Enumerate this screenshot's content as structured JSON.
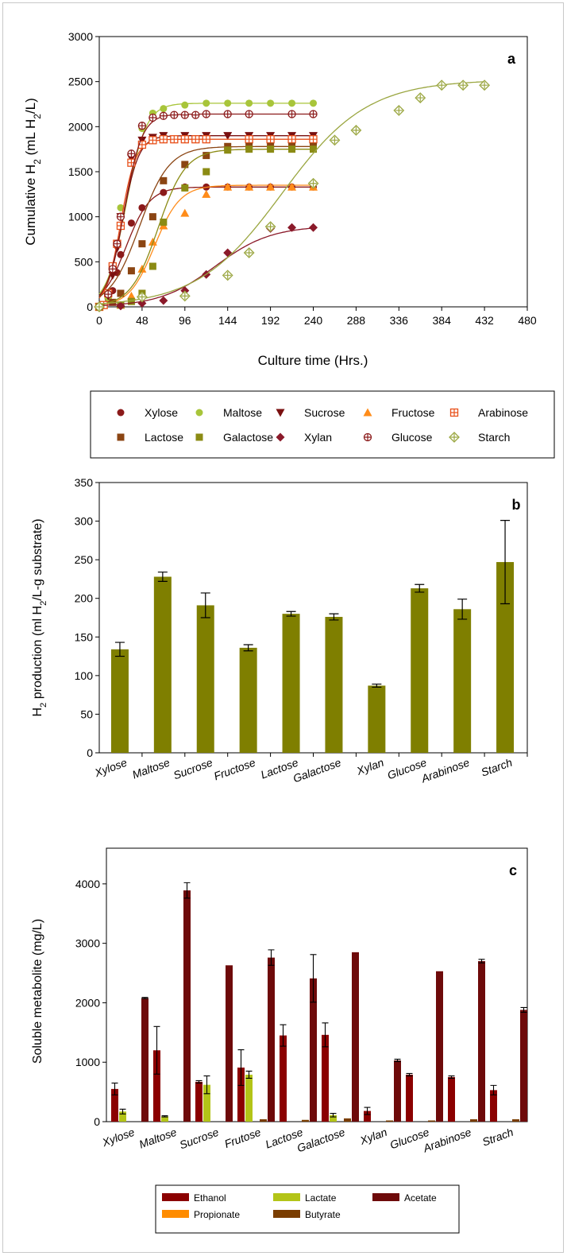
{
  "chart_data": [
    {
      "panel": "a",
      "type": "scatter",
      "xlabel": "Culture time (Hrs.)",
      "ylabel_main": "Cumulative H",
      "ylabel_sub": "2",
      "ylabel_unit": " (mL H",
      "ylabel_unit_sub": "2",
      "ylabel_end": "/L)",
      "xlim": [
        0,
        480
      ],
      "ylim": [
        0,
        3000
      ],
      "xticks": [
        "0",
        "48",
        "96",
        "144",
        "192",
        "240",
        "288",
        "336",
        "384",
        "432",
        "480"
      ],
      "yticks": [
        "0",
        "500",
        "1000",
        "1500",
        "2000",
        "2500",
        "3000"
      ],
      "legend_position": "below",
      "series": [
        {
          "name": "Xylose",
          "marker": "circle",
          "color": "#8b1a1a",
          "fit": {
            "A": 1330,
            "k": 0.075,
            "t0": 30
          },
          "points": [
            [
              0,
              0
            ],
            [
              5,
              20
            ],
            [
              10,
              90
            ],
            [
              15,
              180
            ],
            [
              20,
              380
            ],
            [
              24,
              580
            ],
            [
              36,
              930
            ],
            [
              48,
              1100
            ],
            [
              72,
              1270
            ],
            [
              96,
              1330
            ],
            [
              120,
              1330
            ],
            [
              144,
              1330
            ],
            [
              168,
              1330
            ],
            [
              192,
              1330
            ],
            [
              216,
              1330
            ],
            [
              240,
              1330
            ]
          ]
        },
        {
          "name": "Maltose",
          "marker": "circle",
          "color": "#a8c53a",
          "fit": {
            "A": 2260,
            "k": 0.09,
            "t0": 30
          },
          "points": [
            [
              0,
              0
            ],
            [
              10,
              100
            ],
            [
              15,
              400
            ],
            [
              20,
              700
            ],
            [
              24,
              1100
            ],
            [
              36,
              1600
            ],
            [
              48,
              1980
            ],
            [
              60,
              2150
            ],
            [
              72,
              2200
            ],
            [
              96,
              2240
            ],
            [
              120,
              2260
            ],
            [
              144,
              2260
            ],
            [
              168,
              2260
            ],
            [
              192,
              2260
            ],
            [
              216,
              2260
            ],
            [
              240,
              2260
            ]
          ]
        },
        {
          "name": "Sucrose",
          "marker": "triangle-down",
          "color": "#7a1010",
          "fit": {
            "A": 1900,
            "k": 0.11,
            "t0": 26
          },
          "points": [
            [
              0,
              0
            ],
            [
              10,
              120
            ],
            [
              15,
              350
            ],
            [
              20,
              650
            ],
            [
              24,
              1000
            ],
            [
              36,
              1650
            ],
            [
              48,
              1850
            ],
            [
              60,
              1880
            ],
            [
              72,
              1900
            ],
            [
              96,
              1900
            ],
            [
              120,
              1900
            ],
            [
              144,
              1900
            ],
            [
              168,
              1900
            ],
            [
              192,
              1900
            ],
            [
              216,
              1900
            ],
            [
              240,
              1900
            ]
          ]
        },
        {
          "name": "Fructose",
          "marker": "triangle-up",
          "color": "#ff8c1a",
          "fit": {
            "A": 1350,
            "k": 0.07,
            "t0": 62
          },
          "points": [
            [
              0,
              0
            ],
            [
              24,
              20
            ],
            [
              36,
              120
            ],
            [
              48,
              420
            ],
            [
              60,
              720
            ],
            [
              72,
              900
            ],
            [
              96,
              1040
            ],
            [
              120,
              1250
            ],
            [
              144,
              1330
            ],
            [
              168,
              1330
            ],
            [
              192,
              1330
            ],
            [
              216,
              1330
            ],
            [
              240,
              1330
            ]
          ]
        },
        {
          "name": "Arabinose",
          "marker": "square-plus",
          "color": "#e8501a",
          "fit": {
            "A": 1860,
            "k": 0.12,
            "t0": 24
          },
          "points": [
            [
              0,
              0
            ],
            [
              5,
              20
            ],
            [
              10,
              150
            ],
            [
              15,
              450
            ],
            [
              20,
              700
            ],
            [
              24,
              900
            ],
            [
              36,
              1600
            ],
            [
              48,
              1800
            ],
            [
              60,
              1850
            ],
            [
              72,
              1860
            ],
            [
              84,
              1860
            ],
            [
              96,
              1860
            ],
            [
              108,
              1860
            ],
            [
              120,
              1860
            ],
            [
              168,
              1860
            ],
            [
              192,
              1860
            ],
            [
              216,
              1860
            ],
            [
              240,
              1860
            ]
          ]
        },
        {
          "name": "Lactose",
          "marker": "square",
          "color": "#8b4513",
          "fit": {
            "A": 1780,
            "k": 0.06,
            "t0": 45
          },
          "points": [
            [
              0,
              0
            ],
            [
              15,
              50
            ],
            [
              24,
              150
            ],
            [
              36,
              400
            ],
            [
              48,
              700
            ],
            [
              60,
              1000
            ],
            [
              72,
              1400
            ],
            [
              96,
              1580
            ],
            [
              120,
              1680
            ],
            [
              144,
              1780
            ],
            [
              168,
              1780
            ],
            [
              192,
              1780
            ],
            [
              216,
              1780
            ],
            [
              240,
              1780
            ]
          ]
        },
        {
          "name": "Galactose",
          "marker": "square",
          "color": "#8b8b14",
          "fit": {
            "A": 1750,
            "k": 0.065,
            "t0": 66
          },
          "points": [
            [
              0,
              0
            ],
            [
              24,
              20
            ],
            [
              36,
              60
            ],
            [
              48,
              150
            ],
            [
              60,
              450
            ],
            [
              72,
              940
            ],
            [
              96,
              1320
            ],
            [
              120,
              1500
            ],
            [
              144,
              1740
            ],
            [
              168,
              1750
            ],
            [
              192,
              1750
            ],
            [
              216,
              1750
            ],
            [
              240,
              1750
            ]
          ]
        },
        {
          "name": "Xylan",
          "marker": "diamond",
          "color": "#8b1a2a",
          "fit": {
            "A": 900,
            "k": 0.032,
            "t0": 130
          },
          "points": [
            [
              0,
              0
            ],
            [
              24,
              10
            ],
            [
              48,
              40
            ],
            [
              72,
              70
            ],
            [
              96,
              180
            ],
            [
              120,
              360
            ],
            [
              144,
              600
            ],
            [
              192,
              870
            ],
            [
              216,
              880
            ],
            [
              240,
              880
            ]
          ]
        },
        {
          "name": "Glucose",
          "marker": "circle-plus",
          "color": "#8b1a1a",
          "fit": {
            "A": 2140,
            "k": 0.1,
            "t0": 28
          },
          "points": [
            [
              0,
              0
            ],
            [
              10,
              140
            ],
            [
              15,
              420
            ],
            [
              20,
              700
            ],
            [
              24,
              1000
            ],
            [
              36,
              1700
            ],
            [
              48,
              2010
            ],
            [
              60,
              2100
            ],
            [
              72,
              2120
            ],
            [
              84,
              2130
            ],
            [
              96,
              2130
            ],
            [
              108,
              2130
            ],
            [
              120,
              2140
            ],
            [
              144,
              2140
            ],
            [
              168,
              2140
            ],
            [
              216,
              2140
            ],
            [
              240,
              2140
            ]
          ]
        },
        {
          "name": "Starch",
          "marker": "diamond-plus",
          "color": "#9aa640",
          "fit": {
            "A": 2520,
            "k": 0.021,
            "t0": 205
          },
          "points": [
            [
              0,
              0
            ],
            [
              48,
              110
            ],
            [
              96,
              120
            ],
            [
              144,
              350
            ],
            [
              168,
              600
            ],
            [
              192,
              890
            ],
            [
              240,
              1370
            ],
            [
              264,
              1850
            ],
            [
              288,
              1960
            ],
            [
              336,
              2180
            ],
            [
              360,
              2320
            ],
            [
              384,
              2460
            ],
            [
              408,
              2460
            ],
            [
              432,
              2460
            ]
          ]
        }
      ]
    },
    {
      "panel": "b",
      "type": "bar",
      "ylabel_main": "H",
      "ylabel_sub": "2",
      "ylabel_unit": " production (ml H",
      "ylabel_unit_sub": "2",
      "ylabel_end": "/L-g substrate)",
      "ylim": [
        0,
        350
      ],
      "yticks": [
        "0",
        "50",
        "100",
        "150",
        "200",
        "250",
        "300",
        "350"
      ],
      "color": "#7f7f00",
      "categories": [
        "Xylose",
        "Maltose",
        "Sucrose",
        "Fructose",
        "Lactose",
        "Galactose",
        "Xylan",
        "Glucose",
        "Arabinose",
        "Starch"
      ],
      "values": [
        134,
        228,
        191,
        136,
        180,
        176,
        87,
        213,
        186,
        247
      ],
      "errors": [
        9,
        6,
        16,
        4,
        3,
        4,
        2,
        5,
        13,
        54
      ]
    },
    {
      "panel": "c",
      "type": "bar",
      "ylabel": "Soluble metabolite (mg/L)",
      "ylim": [
        0,
        4600
      ],
      "yticks": [
        "0",
        "1000",
        "2000",
        "3000",
        "4000"
      ],
      "categories": [
        "Xylose",
        "Maltose",
        "Sucrose",
        "Frutose",
        "Lactose",
        "Galactose",
        "Xylan",
        "Glucose",
        "Arabinose",
        "Strach"
      ],
      "legend_position": "below",
      "series": [
        {
          "name": "Ethanol",
          "color": "#8b0000",
          "values": [
            550,
            1200,
            670,
            910,
            1450,
            1460,
            180,
            790,
            750,
            530
          ],
          "errors": [
            100,
            400,
            20,
            300,
            180,
            200,
            60,
            20,
            20,
            80
          ]
        },
        {
          "name": "Lactate",
          "color": "#b3c418",
          "values": [
            170,
            90,
            620,
            790,
            0,
            110,
            0,
            0,
            0,
            0
          ],
          "errors": [
            40,
            10,
            150,
            60,
            0,
            30,
            0,
            0,
            0,
            0
          ]
        },
        {
          "name": "Propionate",
          "color": "#ff8c00",
          "values": [
            0,
            0,
            0,
            0,
            0,
            0,
            0,
            0,
            0,
            0
          ],
          "errors": [
            0,
            0,
            0,
            0,
            0,
            0,
            0,
            0,
            0,
            0
          ]
        },
        {
          "name": "Butyrate",
          "color": "#7a3d00",
          "values": [
            0,
            0,
            0,
            40,
            30,
            55,
            20,
            20,
            40,
            40
          ],
          "errors": [
            0,
            0,
            0,
            0,
            0,
            0,
            0,
            0,
            0,
            0
          ]
        },
        {
          "name": "Acetate",
          "color": "#6e0a0a",
          "values": [
            2080,
            3890,
            2630,
            2760,
            2410,
            2850,
            1030,
            2530,
            2700,
            1880
          ],
          "errors": [
            10,
            130,
            0,
            130,
            400,
            0,
            20,
            0,
            30,
            40
          ]
        }
      ]
    }
  ]
}
